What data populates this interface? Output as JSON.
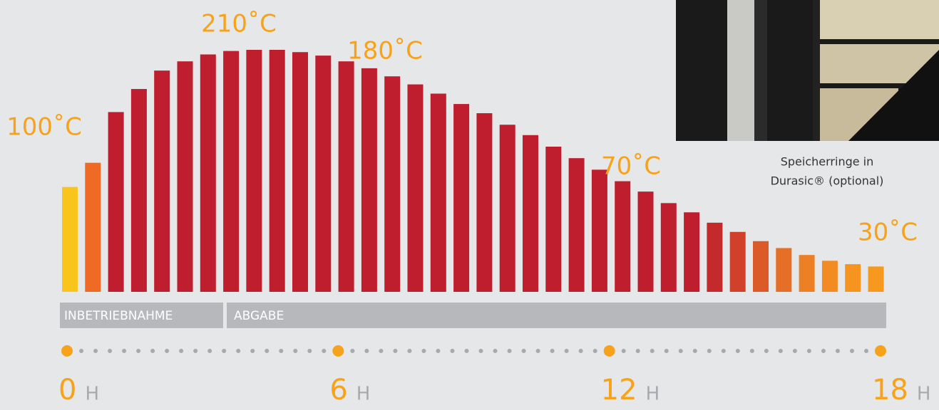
{
  "chart_data": {
    "type": "bar",
    "values": [
      91,
      112,
      156,
      176,
      192,
      200,
      206,
      209,
      210,
      210,
      208,
      205,
      200,
      194,
      187,
      180,
      172,
      163,
      155,
      145,
      136,
      126,
      116,
      106,
      96,
      87,
      77,
      69,
      60,
      52,
      44,
      38,
      32,
      27,
      24,
      22
    ],
    "colors": [
      "#f9c41b",
      "#ef6a24",
      "#be1e2d",
      "#be1e2d",
      "#be1e2d",
      "#be1e2d",
      "#be1e2d",
      "#be1e2d",
      "#be1e2d",
      "#be1e2d",
      "#be1e2d",
      "#be1e2d",
      "#be1e2d",
      "#be1e2d",
      "#be1e2d",
      "#be1e2d",
      "#be1e2d",
      "#be1e2d",
      "#be1e2d",
      "#be1e2d",
      "#be1e2d",
      "#be1e2d",
      "#be1e2d",
      "#be1e2d",
      "#be1e2d",
      "#be1e2d",
      "#be1e2d",
      "#be1e2d",
      "#c42a2b",
      "#d0402a",
      "#dc5a28",
      "#e56f26",
      "#ed8024",
      "#f28c22",
      "#f59520",
      "#f7981f"
    ],
    "ylim": [
      0,
      210
    ],
    "annotations": [
      "210˚C",
      "180˚C",
      "100˚C",
      "70˚C",
      "30˚C"
    ],
    "phases": [
      "INBETRIEBNAHME",
      "ABGABE"
    ],
    "xlim": [
      0,
      18
    ],
    "xticks": [
      0,
      6,
      12,
      18
    ],
    "x_unit": "H",
    "caption": [
      "Speicherringe in",
      "Durasic® (optional)"
    ]
  }
}
